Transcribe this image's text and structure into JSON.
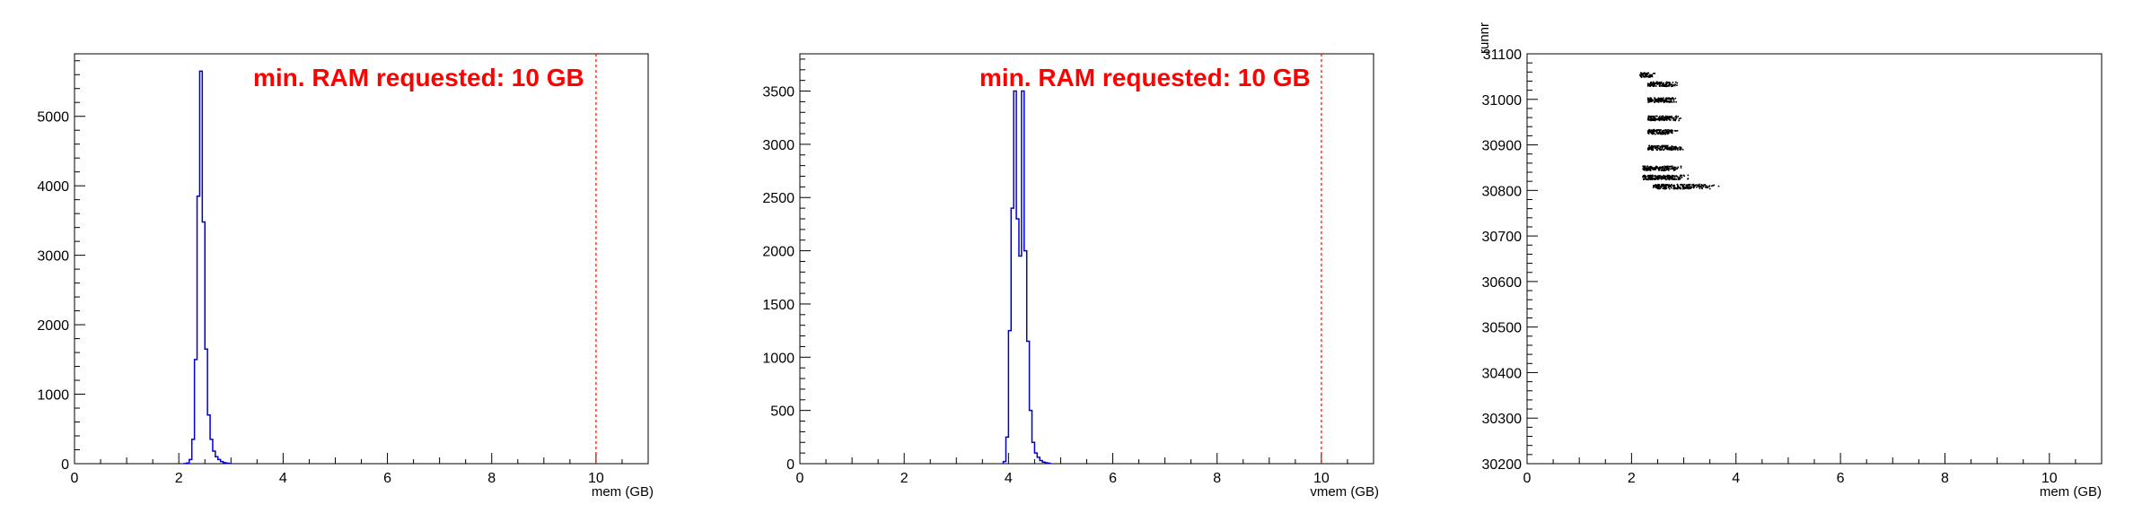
{
  "chart_data": [
    {
      "type": "histogram",
      "xlabel": "mem (GB)",
      "ylabel": "",
      "xlim": [
        0,
        11
      ],
      "ylim": [
        0,
        5900
      ],
      "xticks": [
        "0",
        "2",
        "4",
        "6",
        "8",
        "10"
      ],
      "yticks": [
        "0",
        "1000",
        "2000",
        "3000",
        "4000",
        "5000"
      ],
      "xtick_values": [
        0,
        2,
        4,
        6,
        8,
        10
      ],
      "ytick_values": [
        0,
        1000,
        2000,
        3000,
        4000,
        5000
      ],
      "bin_width": 0.05,
      "bins": [
        [
          2.1,
          2
        ],
        [
          2.15,
          10
        ],
        [
          2.2,
          60
        ],
        [
          2.25,
          350
        ],
        [
          2.3,
          1500
        ],
        [
          2.35,
          3850
        ],
        [
          2.4,
          5650
        ],
        [
          2.45,
          3480
        ],
        [
          2.5,
          1650
        ],
        [
          2.55,
          700
        ],
        [
          2.6,
          350
        ],
        [
          2.65,
          180
        ],
        [
          2.7,
          100
        ],
        [
          2.75,
          60
        ],
        [
          2.8,
          30
        ],
        [
          2.85,
          15
        ],
        [
          2.9,
          8
        ],
        [
          2.95,
          4
        ]
      ],
      "series_color": "#0000cc",
      "threshold": {
        "x": 10,
        "label": "min. RAM requested: 10 GB",
        "color": "#ff0000"
      },
      "grid": false
    },
    {
      "type": "histogram",
      "xlabel": "vmem (GB)",
      "ylabel": "",
      "xlim": [
        0,
        11
      ],
      "ylim": [
        0,
        3850
      ],
      "xticks": [
        "0",
        "2",
        "4",
        "6",
        "8",
        "10"
      ],
      "yticks": [
        "0",
        "500",
        "1000",
        "1500",
        "2000",
        "2500",
        "3000",
        "3500"
      ],
      "xtick_values": [
        0,
        2,
        4,
        6,
        8,
        10
      ],
      "ytick_values": [
        0,
        500,
        1000,
        1500,
        2000,
        2500,
        3000,
        3500
      ],
      "bin_width": 0.05,
      "bins": [
        [
          3.9,
          20
        ],
        [
          3.95,
          250
        ],
        [
          4.0,
          1250
        ],
        [
          4.05,
          2400
        ],
        [
          4.1,
          3500
        ],
        [
          4.15,
          2300
        ],
        [
          4.2,
          1950
        ],
        [
          4.25,
          3500
        ],
        [
          4.3,
          2000
        ],
        [
          4.35,
          1150
        ],
        [
          4.4,
          500
        ],
        [
          4.45,
          200
        ],
        [
          4.5,
          100
        ],
        [
          4.55,
          60
        ],
        [
          4.6,
          30
        ],
        [
          4.65,
          15
        ],
        [
          4.7,
          8
        ],
        [
          4.75,
          4
        ]
      ],
      "series_color": "#0000cc",
      "threshold": {
        "x": 10,
        "label": "min. RAM requested: 10 GB",
        "color": "#ff0000"
      },
      "grid": false
    },
    {
      "type": "scatter",
      "xlabel": "mem (GB)",
      "ylabel": "runnr",
      "xlim": [
        0,
        11
      ],
      "ylim": [
        30200,
        31100
      ],
      "xticks": [
        "0",
        "2",
        "4",
        "6",
        "8",
        "10"
      ],
      "yticks": [
        "30200",
        "30300",
        "30400",
        "30500",
        "30600",
        "30700",
        "30800",
        "30900",
        "31000",
        "31100"
      ],
      "xtick_values": [
        0,
        2,
        4,
        6,
        8,
        10
      ],
      "ytick_values": [
        30200,
        30300,
        30400,
        30500,
        30600,
        30700,
        30800,
        30900,
        31000,
        31100
      ],
      "point_color": "#000000",
      "clusters": [
        {
          "run": 31055,
          "x_min": 2.15,
          "x_max": 2.45,
          "n": 60
        },
        {
          "run": 31035,
          "x_min": 2.3,
          "x_max": 2.9,
          "n": 120
        },
        {
          "run": 31000,
          "x_min": 2.3,
          "x_max": 2.9,
          "n": 140
        },
        {
          "run": 30960,
          "x_min": 2.3,
          "x_max": 2.95,
          "n": 160
        },
        {
          "run": 30930,
          "x_min": 2.3,
          "x_max": 2.95,
          "n": 120
        },
        {
          "run": 30895,
          "x_min": 2.3,
          "x_max": 3.0,
          "n": 150
        },
        {
          "run": 30850,
          "x_min": 2.2,
          "x_max": 3.0,
          "n": 160
        },
        {
          "run": 30830,
          "x_min": 2.2,
          "x_max": 3.1,
          "n": 200
        },
        {
          "run": 30810,
          "x_min": 2.4,
          "x_max": 3.7,
          "n": 200
        }
      ],
      "grid": false
    }
  ]
}
